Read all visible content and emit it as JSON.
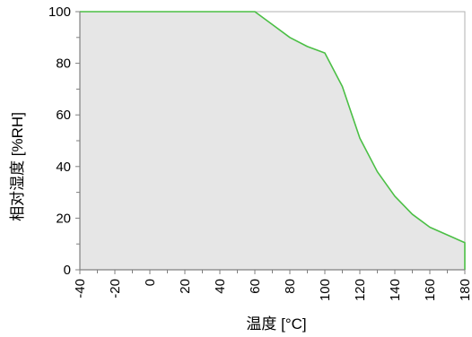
{
  "chart_data": {
    "type": "area",
    "title": "",
    "xlabel": "温度 [°C]",
    "ylabel": "相对湿度 [%RH]",
    "xlim": [
      -40,
      180
    ],
    "ylim": [
      0,
      100
    ],
    "x_ticks": [
      -40,
      -20,
      0,
      20,
      40,
      60,
      80,
      100,
      120,
      140,
      160,
      180
    ],
    "y_ticks": [
      0,
      20,
      40,
      60,
      80,
      100
    ],
    "grid": false,
    "legend": "none",
    "series": [
      {
        "x": [
          -40,
          60,
          70,
          80,
          90,
          100,
          110,
          120,
          130,
          140,
          150,
          160,
          170,
          180
        ],
        "y": [
          100,
          100,
          95,
          90,
          86.5,
          84,
          71,
          51,
          38,
          28.5,
          21.5,
          16.5,
          13.5,
          10.5
        ]
      }
    ],
    "colors": {
      "line": "#4bbf45",
      "fill": "#e6e6e6",
      "axis": "#808080"
    }
  }
}
